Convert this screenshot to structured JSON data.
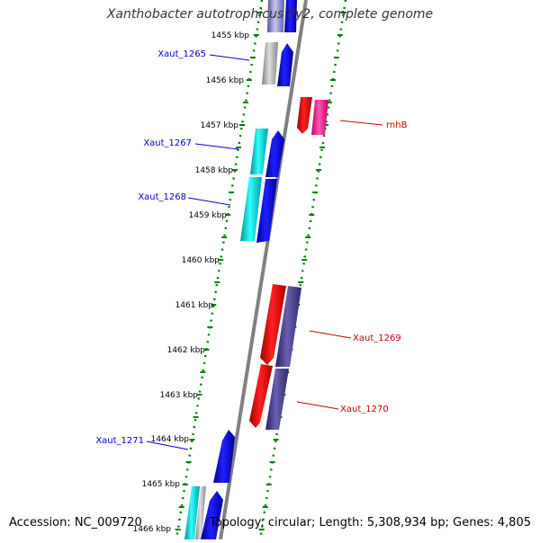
{
  "title": "Xanthobacter autotrophicus Py2, complete genome",
  "accession": "Accession: NC_009720",
  "topology": "Topology: circular; Length: 5,308,934 bp; Genes: 4,805",
  "ticks": [
    "1455 kbp",
    "1456 kbp",
    "1457 kbp",
    "1458 kbp",
    "1459 kbp",
    "1460 kbp",
    "1461 kbp",
    "1462 kbp",
    "1463 kbp",
    "1464 kbp",
    "1465 kbp",
    "1466 kbp"
  ],
  "gene_labels": {
    "xaut_1265": "Xaut_1265",
    "rnhb": "rnhB",
    "xaut_1267": "Xaut_1267",
    "xaut_1268": "Xaut_1268",
    "xaut_1269": "Xaut_1269",
    "xaut_1270": "Xaut_1270",
    "xaut_1271": "Xaut_1271"
  },
  "colors": {
    "axis": "#808080",
    "tick": "#008000",
    "label_forward": "#0000cc",
    "label_reverse": "#cc0000",
    "gene_blue": "#0000ee",
    "gene_cyan": "#00d8d8",
    "gene_gray": "#b0b0b0",
    "gene_red": "#ee0000",
    "gene_pink": "#ff2090",
    "gene_slate": "#4a3f8f",
    "gene_lavender": "#8f8fd8"
  }
}
